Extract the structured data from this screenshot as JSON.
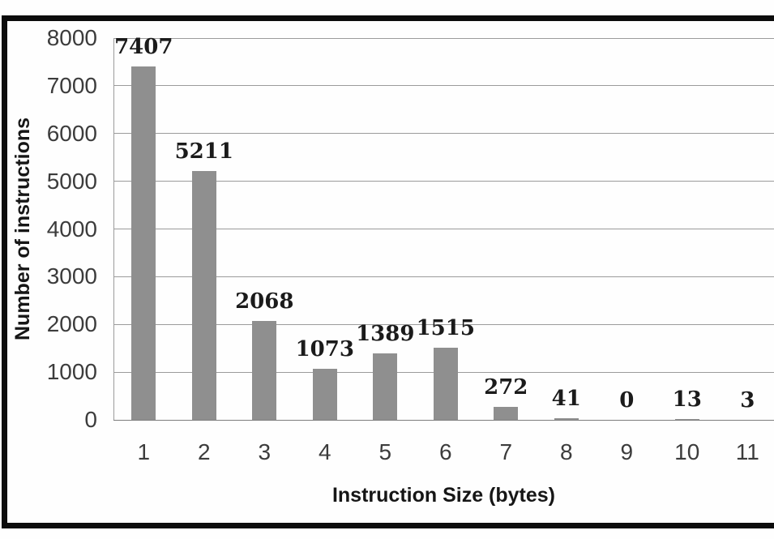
{
  "chart_data": {
    "type": "bar",
    "title": "",
    "categories": [
      "1",
      "2",
      "3",
      "4",
      "5",
      "6",
      "7",
      "8",
      "9",
      "10",
      "11"
    ],
    "values": [
      7407,
      5211,
      2068,
      1073,
      1389,
      1515,
      272,
      41,
      0,
      13,
      3
    ],
    "data_labels": [
      "7407",
      "5211",
      "2068",
      "1073",
      "1389",
      "1515",
      "272",
      "41",
      "0",
      "13",
      "3"
    ],
    "xlabel": "Instruction Size (bytes)",
    "ylabel": "Number of instructions",
    "ylim": [
      0,
      8000
    ],
    "ytick_step": 1000,
    "yticks": [
      "8000",
      "7000",
      "6000",
      "5000",
      "4000",
      "3000",
      "2000",
      "1000",
      "0"
    ],
    "grid": true,
    "legend": false,
    "colors": {
      "bar": "#8f8f8f",
      "grid": "#9b9b9b",
      "axis": "#7d7d7d",
      "tick_text": "#3c3c3c",
      "value_text": "#1b1b1b",
      "frame": "#0c0c0c"
    }
  }
}
